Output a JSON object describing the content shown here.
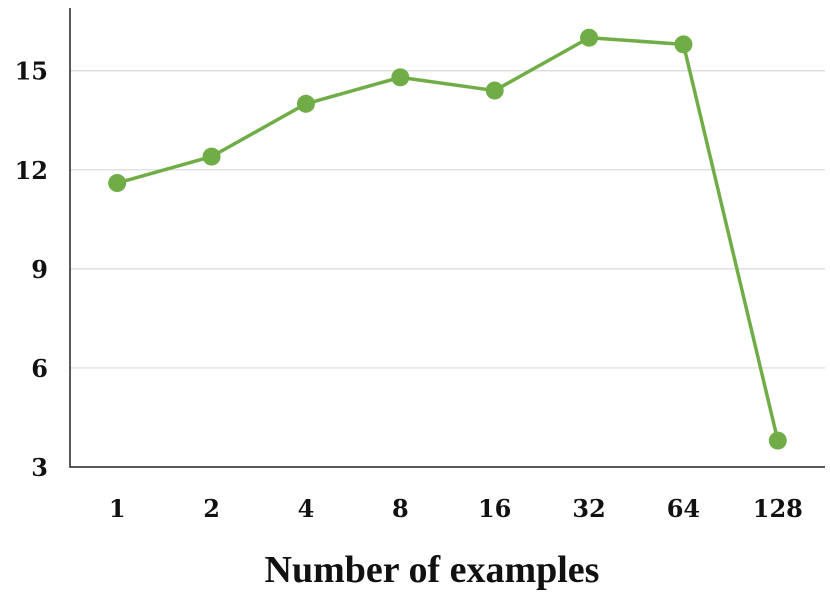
{
  "chart_data": {
    "type": "line",
    "categories": [
      "1",
      "2",
      "4",
      "8",
      "16",
      "32",
      "64",
      "128"
    ],
    "series": [
      {
        "values": [
          11.6,
          12.4,
          14.0,
          14.8,
          14.4,
          16.0,
          15.8,
          3.8
        ],
        "color": "#70ad47"
      }
    ],
    "yticks": [
      "3",
      "6",
      "9",
      "12",
      "15"
    ],
    "ylim": [
      3,
      16.9
    ],
    "xlabel": "Number of examples",
    "ylabel": "",
    "grid": "horizontal",
    "legend": "none"
  }
}
